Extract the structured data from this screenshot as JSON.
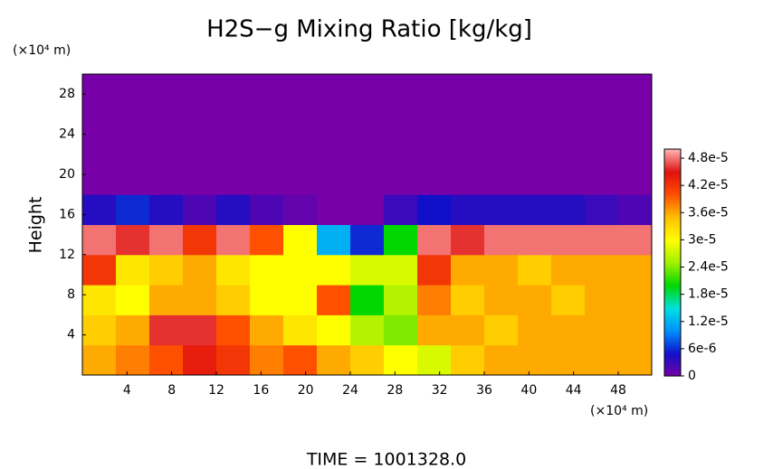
{
  "chart_data": {
    "type": "heatmap",
    "title": "H2S−g Mixing Ratio [kg/kg]",
    "y_label": "Height",
    "y_unit": "(×10⁴ m)",
    "x_unit": "(×10⁴ m)",
    "footer": "TIME = 1001328.0",
    "xlim": [
      0,
      51
    ],
    "ylim": [
      0,
      30
    ],
    "xticks": [
      4,
      8,
      12,
      16,
      20,
      24,
      28,
      32,
      36,
      40,
      44,
      48
    ],
    "yticks": [
      4,
      8,
      12,
      16,
      20,
      24,
      28
    ],
    "x": [
      1.5,
      4.5,
      7.5,
      10.5,
      13.5,
      16.5,
      19.5,
      22.5,
      25.5,
      28.5,
      31.5,
      34.5,
      37.5,
      40.5,
      43.5,
      46.5,
      49.5
    ],
    "y": [
      1.5,
      4.5,
      7.5,
      10.5,
      13.5,
      16.5,
      19.5,
      22.5,
      25.5,
      28.5
    ],
    "z": [
      [
        3.6e-05,
        3.8e-05,
        4e-05,
        4.4e-05,
        4.2e-05,
        3.8e-05,
        4e-05,
        3.6e-05,
        3.4e-05,
        3e-05,
        2.8e-05,
        3.4e-05,
        3.6e-05,
        3.6e-05,
        3.6e-05,
        3.6e-05,
        3.6e-05
      ],
      [
        3.4e-05,
        3.6e-05,
        4.6e-05,
        4.6e-05,
        4e-05,
        3.6e-05,
        3.2e-05,
        3e-05,
        2.6e-05,
        2.4e-05,
        3.6e-05,
        3.6e-05,
        3.4e-05,
        3.6e-05,
        3.6e-05,
        3.6e-05,
        3.6e-05
      ],
      [
        3.2e-05,
        3e-05,
        3.6e-05,
        3.6e-05,
        3.4e-05,
        3e-05,
        3e-05,
        4e-05,
        2e-05,
        2.6e-05,
        3.8e-05,
        3.4e-05,
        3.6e-05,
        3.6e-05,
        3.4e-05,
        3.6e-05,
        3.6e-05
      ],
      [
        4.2e-05,
        3.2e-05,
        3.4e-05,
        3.6e-05,
        3.2e-05,
        3e-05,
        3e-05,
        3e-05,
        2.8e-05,
        2.8e-05,
        4.2e-05,
        3.6e-05,
        3.6e-05,
        3.4e-05,
        3.6e-05,
        3.6e-05,
        3.6e-05
      ],
      [
        4.8e-05,
        4.6e-05,
        4.8e-05,
        4.2e-05,
        4.8e-05,
        4e-05,
        3e-05,
        1.2e-05,
        6e-06,
        2e-05,
        4.8e-05,
        4.6e-05,
        4.8e-05,
        4.8e-05,
        4.8e-05,
        4.8e-05,
        4.8e-05
      ],
      [
        4e-06,
        6e-06,
        4e-06,
        2e-06,
        4e-06,
        2e-06,
        1e-06,
        0,
        0,
        3e-06,
        5e-06,
        4e-06,
        4e-06,
        4e-06,
        4e-06,
        3e-06,
        2e-06
      ],
      [
        0,
        0,
        0,
        0,
        0,
        0,
        0,
        0,
        0,
        0,
        0,
        0,
        0,
        0,
        0,
        0,
        0
      ],
      [
        0,
        0,
        0,
        0,
        0,
        0,
        0,
        0,
        0,
        0,
        0,
        0,
        0,
        0,
        0,
        0,
        0
      ],
      [
        0,
        0,
        0,
        0,
        0,
        0,
        0,
        0,
        0,
        0,
        0,
        0,
        0,
        0,
        0,
        0,
        0
      ],
      [
        0,
        0,
        0,
        0,
        0,
        0,
        0,
        0,
        0,
        0,
        0,
        0,
        0,
        0,
        0,
        0,
        0
      ]
    ],
    "clim": [
      0,
      5e-05
    ],
    "cticks": [
      0,
      {
        "value": 6e-06,
        "label": "6e-6"
      },
      {
        "value": 1.2e-05,
        "label": "1.2e-5"
      },
      {
        "value": 1.8e-05,
        "label": "1.8e-5"
      },
      {
        "value": 2.4e-05,
        "label": "2.4e-5"
      },
      {
        "value": 3e-05,
        "label": "3e-5"
      },
      {
        "value": 3.6e-05,
        "label": "3.6e-5"
      },
      {
        "value": 4.2e-05,
        "label": "4.2e-5"
      },
      {
        "value": 4.8e-05,
        "label": "4.8e-5"
      }
    ],
    "colormap": [
      "#7800a8",
      "#1010c8",
      "#0090ff",
      "#00e0e0",
      "#00d800",
      "#a0f000",
      "#ffff00",
      "#ffc000",
      "#ff5000",
      "#e01010",
      "#ffb4b4"
    ]
  }
}
